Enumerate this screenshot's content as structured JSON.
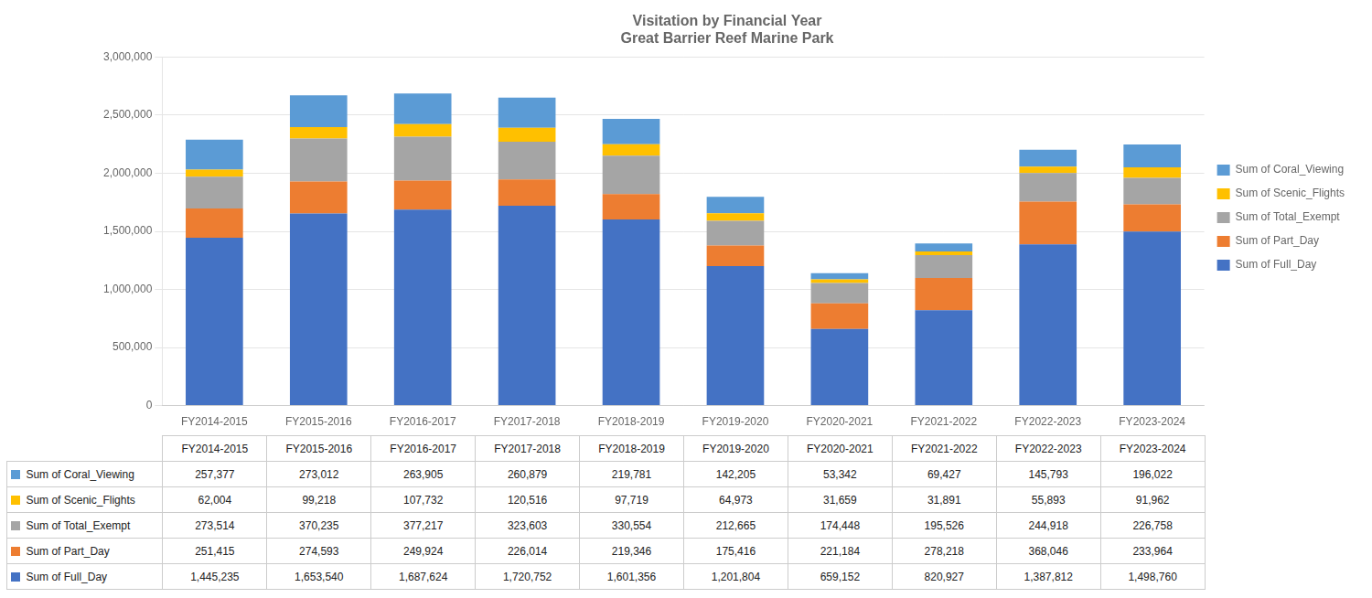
{
  "chart_data": {
    "type": "bar",
    "title": "Visitation by Financial Year\nGreat Barrier Reef Marine Park",
    "categories": [
      "FY2014-2015",
      "FY2015-2016",
      "FY2016-2017",
      "FY2017-2018",
      "FY2018-2019",
      "FY2019-2020",
      "FY2020-2021",
      "FY2021-2022",
      "FY2022-2023",
      "FY2023-2024"
    ],
    "series": [
      {
        "name": "Sum of Full_Day",
        "color": "#4472C4",
        "values": [
          1445235,
          1653540,
          1687624,
          1720752,
          1601356,
          1201804,
          659152,
          820927,
          1387812,
          1498760
        ],
        "value_labels": [
          "1,445,235",
          "1,653,540",
          "1,687,624",
          "1,720,752",
          "1,601,356",
          "1,201,804",
          "659,152",
          "820,927",
          "1,387,812",
          "1,498,760"
        ]
      },
      {
        "name": "Sum of Part_Day",
        "color": "#ED7D31",
        "values": [
          251415,
          274593,
          249924,
          226014,
          219346,
          175416,
          221184,
          278218,
          368046,
          233964
        ],
        "value_labels": [
          "251,415",
          "274,593",
          "249,924",
          "226,014",
          "219,346",
          "175,416",
          "221,184",
          "278,218",
          "368,046",
          "233,964"
        ]
      },
      {
        "name": "Sum of Total_Exempt",
        "color": "#A5A5A5",
        "values": [
          273514,
          370235,
          377217,
          323603,
          330554,
          212665,
          174448,
          195526,
          244918,
          226758
        ],
        "value_labels": [
          "273,514",
          "370,235",
          "377,217",
          "323,603",
          "330,554",
          "212,665",
          "174,448",
          "195,526",
          "244,918",
          "226,758"
        ]
      },
      {
        "name": "Sum of Scenic_Flights",
        "color": "#FFC000",
        "values": [
          62004,
          99218,
          107732,
          120516,
          97719,
          64973,
          31659,
          31891,
          55893,
          91962
        ],
        "value_labels": [
          "62,004",
          "99,218",
          "107,732",
          "120,516",
          "97,719",
          "64,973",
          "31,659",
          "31,891",
          "55,893",
          "91,962"
        ]
      },
      {
        "name": "Sum of Coral_Viewing",
        "color": "#5B9BD5",
        "values": [
          257377,
          273012,
          263905,
          260879,
          219781,
          142205,
          53342,
          69427,
          145793,
          196022
        ],
        "value_labels": [
          "257,377",
          "273,012",
          "263,905",
          "260,879",
          "219,781",
          "142,205",
          "53,342",
          "69,427",
          "145,793",
          "196,022"
        ]
      }
    ],
    "ylim": [
      0,
      3000000
    ],
    "yticks": [
      0,
      {
        "value": 500000,
        "label": "500,000"
      },
      {
        "value": 1000000,
        "label": "1,000,000"
      },
      {
        "value": 1500000,
        "label": "1,500,000"
      },
      {
        "value": 2000000,
        "label": "2,000,000"
      },
      {
        "value": 2500000,
        "label": "2,500,000"
      },
      {
        "value": 3000000,
        "label": "3,000,000"
      }
    ],
    "stacked": true,
    "grid": true,
    "legend": "right"
  }
}
